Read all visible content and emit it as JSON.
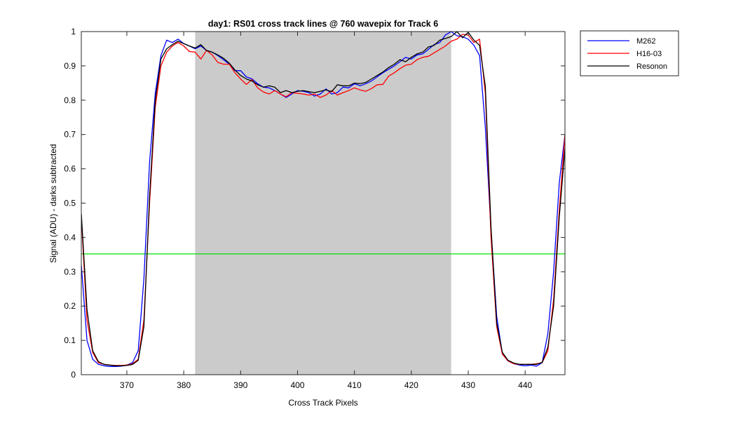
{
  "chart_data": {
    "type": "line",
    "title": "day1: RS01  cross track lines @ 760 wavepix for Track 6",
    "xlabel": "Cross Track Pixels",
    "ylabel": "Signal (ADU) - darks subtracted",
    "xlim": [
      362,
      447
    ],
    "ylim": [
      0,
      1
    ],
    "xticks": [
      370,
      380,
      390,
      400,
      410,
      420,
      430,
      440
    ],
    "yticks": [
      0,
      0.1,
      0.2,
      0.3,
      0.4,
      0.5,
      0.6,
      0.7,
      0.8,
      0.9,
      1
    ],
    "grid": false,
    "legend_position": "outside-top-right",
    "shaded_region": {
      "x_start": 382,
      "x_end": 427,
      "color": "#cbcbcb"
    },
    "threshold_line": {
      "y": 0.352,
      "color": "#00e000"
    },
    "series": [
      {
        "name": "M262",
        "color": "#0000ff",
        "x": [
          362,
          363,
          364,
          365,
          366,
          367,
          368,
          369,
          370,
          371,
          372,
          373,
          374,
          375,
          376,
          377,
          378,
          379,
          380,
          381,
          382,
          383,
          384,
          385,
          386,
          387,
          388,
          389,
          390,
          391,
          392,
          393,
          394,
          395,
          396,
          397,
          398,
          399,
          400,
          401,
          402,
          403,
          404,
          405,
          406,
          407,
          408,
          409,
          410,
          411,
          412,
          413,
          414,
          415,
          416,
          417,
          418,
          419,
          420,
          421,
          422,
          423,
          424,
          425,
          426,
          427,
          428,
          429,
          430,
          431,
          432,
          433,
          434,
          435,
          436,
          437,
          438,
          439,
          440,
          441,
          442,
          443,
          444,
          445,
          446,
          447
        ],
        "y": [
          0.32,
          0.1,
          0.045,
          0.03,
          0.026,
          0.024,
          0.024,
          0.025,
          0.028,
          0.035,
          0.07,
          0.28,
          0.62,
          0.82,
          0.93,
          0.975,
          0.968,
          0.978,
          0.965,
          0.958,
          0.95,
          0.958,
          0.945,
          0.94,
          0.93,
          0.918,
          0.905,
          0.886,
          0.886,
          0.868,
          0.862,
          0.848,
          0.838,
          0.836,
          0.828,
          0.818,
          0.808,
          0.818,
          0.828,
          0.826,
          0.822,
          0.812,
          0.818,
          0.833,
          0.818,
          0.822,
          0.838,
          0.836,
          0.848,
          0.842,
          0.848,
          0.856,
          0.868,
          0.88,
          0.89,
          0.9,
          0.912,
          0.925,
          0.92,
          0.932,
          0.935,
          0.948,
          0.962,
          0.968,
          0.99,
          1.0,
          0.988,
          0.985,
          0.978,
          0.96,
          0.93,
          0.72,
          0.42,
          0.17,
          0.06,
          0.04,
          0.032,
          0.028,
          0.026,
          0.028,
          0.025,
          0.035,
          0.12,
          0.3,
          0.56,
          0.7
        ]
      },
      {
        "name": "H16-03",
        "color": "#ff0000",
        "x": [
          362,
          363,
          364,
          365,
          366,
          367,
          368,
          369,
          370,
          371,
          372,
          373,
          374,
          375,
          376,
          377,
          378,
          379,
          380,
          381,
          382,
          383,
          384,
          385,
          386,
          387,
          388,
          389,
          390,
          391,
          392,
          393,
          394,
          395,
          396,
          397,
          398,
          399,
          400,
          401,
          402,
          403,
          404,
          405,
          406,
          407,
          408,
          409,
          410,
          411,
          412,
          413,
          414,
          415,
          416,
          417,
          418,
          419,
          420,
          421,
          422,
          423,
          424,
          425,
          426,
          427,
          428,
          429,
          430,
          431,
          432,
          433,
          434,
          435,
          436,
          437,
          438,
          439,
          440,
          441,
          442,
          443,
          444,
          445,
          446,
          447
        ],
        "y": [
          0.46,
          0.16,
          0.065,
          0.035,
          0.03,
          0.028,
          0.027,
          0.027,
          0.028,
          0.032,
          0.045,
          0.16,
          0.5,
          0.78,
          0.9,
          0.94,
          0.958,
          0.968,
          0.958,
          0.942,
          0.94,
          0.92,
          0.945,
          0.932,
          0.91,
          0.905,
          0.905,
          0.88,
          0.862,
          0.846,
          0.86,
          0.836,
          0.824,
          0.818,
          0.828,
          0.818,
          0.81,
          0.822,
          0.82,
          0.818,
          0.815,
          0.818,
          0.808,
          0.815,
          0.828,
          0.815,
          0.822,
          0.828,
          0.836,
          0.83,
          0.826,
          0.834,
          0.845,
          0.846,
          0.87,
          0.88,
          0.892,
          0.902,
          0.905,
          0.918,
          0.925,
          0.928,
          0.938,
          0.948,
          0.958,
          0.972,
          0.978,
          0.992,
          0.99,
          0.968,
          0.978,
          0.82,
          0.4,
          0.14,
          0.06,
          0.04,
          0.032,
          0.03,
          0.03,
          0.03,
          0.032,
          0.035,
          0.07,
          0.22,
          0.48,
          0.7
        ]
      },
      {
        "name": "Resonon",
        "color": "#000000",
        "x": [
          362,
          363,
          364,
          365,
          366,
          367,
          368,
          369,
          370,
          371,
          372,
          373,
          374,
          375,
          376,
          377,
          378,
          379,
          380,
          381,
          382,
          383,
          384,
          385,
          386,
          387,
          388,
          389,
          390,
          391,
          392,
          393,
          394,
          395,
          396,
          397,
          398,
          399,
          400,
          401,
          402,
          403,
          404,
          405,
          406,
          407,
          408,
          409,
          410,
          411,
          412,
          413,
          414,
          415,
          416,
          417,
          418,
          419,
          420,
          421,
          422,
          423,
          424,
          425,
          426,
          427,
          428,
          429,
          430,
          431,
          432,
          433,
          434,
          435,
          436,
          437,
          438,
          439,
          440,
          441,
          442,
          443,
          444,
          445,
          446,
          447
        ],
        "y": [
          0.47,
          0.19,
          0.07,
          0.038,
          0.03,
          0.028,
          0.026,
          0.026,
          0.027,
          0.03,
          0.042,
          0.14,
          0.52,
          0.8,
          0.92,
          0.95,
          0.962,
          0.972,
          0.965,
          0.958,
          0.952,
          0.962,
          0.945,
          0.94,
          0.932,
          0.922,
          0.908,
          0.888,
          0.872,
          0.862,
          0.856,
          0.845,
          0.838,
          0.842,
          0.838,
          0.822,
          0.828,
          0.822,
          0.826,
          0.828,
          0.825,
          0.822,
          0.826,
          0.83,
          0.825,
          0.845,
          0.842,
          0.842,
          0.85,
          0.848,
          0.852,
          0.862,
          0.872,
          0.882,
          0.895,
          0.905,
          0.918,
          0.912,
          0.925,
          0.935,
          0.94,
          0.955,
          0.96,
          0.975,
          0.98,
          0.985,
          1.0,
          0.982,
          0.998,
          0.975,
          0.96,
          0.84,
          0.43,
          0.15,
          0.065,
          0.042,
          0.034,
          0.03,
          0.03,
          0.03,
          0.03,
          0.036,
          0.08,
          0.2,
          0.46,
          0.66
        ]
      }
    ]
  }
}
